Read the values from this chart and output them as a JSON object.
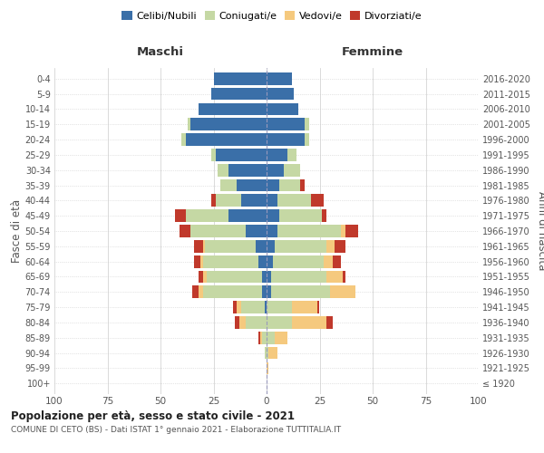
{
  "age_groups": [
    "100+",
    "95-99",
    "90-94",
    "85-89",
    "80-84",
    "75-79",
    "70-74",
    "65-69",
    "60-64",
    "55-59",
    "50-54",
    "45-49",
    "40-44",
    "35-39",
    "30-34",
    "25-29",
    "20-24",
    "15-19",
    "10-14",
    "5-9",
    "0-4"
  ],
  "birth_years": [
    "≤ 1920",
    "1921-1925",
    "1926-1930",
    "1931-1935",
    "1936-1940",
    "1941-1945",
    "1946-1950",
    "1951-1955",
    "1956-1960",
    "1961-1965",
    "1966-1970",
    "1971-1975",
    "1976-1980",
    "1981-1985",
    "1986-1990",
    "1991-1995",
    "1996-2000",
    "2001-2005",
    "2006-2010",
    "2011-2015",
    "2016-2020"
  ],
  "maschi": {
    "celibi": [
      0,
      0,
      0,
      0,
      0,
      1,
      2,
      2,
      4,
      5,
      10,
      18,
      12,
      14,
      18,
      24,
      38,
      36,
      32,
      26,
      25
    ],
    "coniugati": [
      0,
      0,
      1,
      2,
      10,
      11,
      28,
      26,
      26,
      24,
      26,
      20,
      12,
      8,
      5,
      2,
      2,
      1,
      0,
      0,
      0
    ],
    "vedovi": [
      0,
      0,
      0,
      1,
      3,
      2,
      2,
      2,
      1,
      1,
      0,
      0,
      0,
      0,
      0,
      0,
      0,
      0,
      0,
      0,
      0
    ],
    "divorziati": [
      0,
      0,
      0,
      1,
      2,
      2,
      3,
      2,
      3,
      4,
      5,
      5,
      2,
      0,
      0,
      0,
      0,
      0,
      0,
      0,
      0
    ]
  },
  "femmine": {
    "nubili": [
      0,
      0,
      0,
      0,
      0,
      0,
      2,
      2,
      3,
      4,
      5,
      6,
      5,
      6,
      8,
      10,
      18,
      18,
      15,
      13,
      12
    ],
    "coniugate": [
      0,
      0,
      1,
      4,
      12,
      12,
      28,
      26,
      24,
      24,
      30,
      20,
      16,
      10,
      8,
      4,
      2,
      2,
      0,
      0,
      0
    ],
    "vedove": [
      0,
      1,
      4,
      6,
      16,
      12,
      12,
      8,
      4,
      4,
      2,
      0,
      0,
      0,
      0,
      0,
      0,
      0,
      0,
      0,
      0
    ],
    "divorziate": [
      0,
      0,
      0,
      0,
      3,
      1,
      0,
      1,
      4,
      5,
      6,
      2,
      6,
      2,
      0,
      0,
      0,
      0,
      0,
      0,
      0
    ]
  },
  "colors": {
    "celibi": "#3a6fa8",
    "coniugati": "#c5d8a4",
    "vedovi": "#f5c97e",
    "divorziati": "#c0392b"
  },
  "xlim": 100,
  "title": "Popolazione per età, sesso e stato civile - 2021",
  "subtitle": "COMUNE DI CETO (BS) - Dati ISTAT 1° gennaio 2021 - Elaborazione TUTTITALIA.IT",
  "ylabel_left": "Fasce di età",
  "ylabel_right": "Anni di nascita",
  "xlabel_left": "Maschi",
  "xlabel_right": "Femmine"
}
